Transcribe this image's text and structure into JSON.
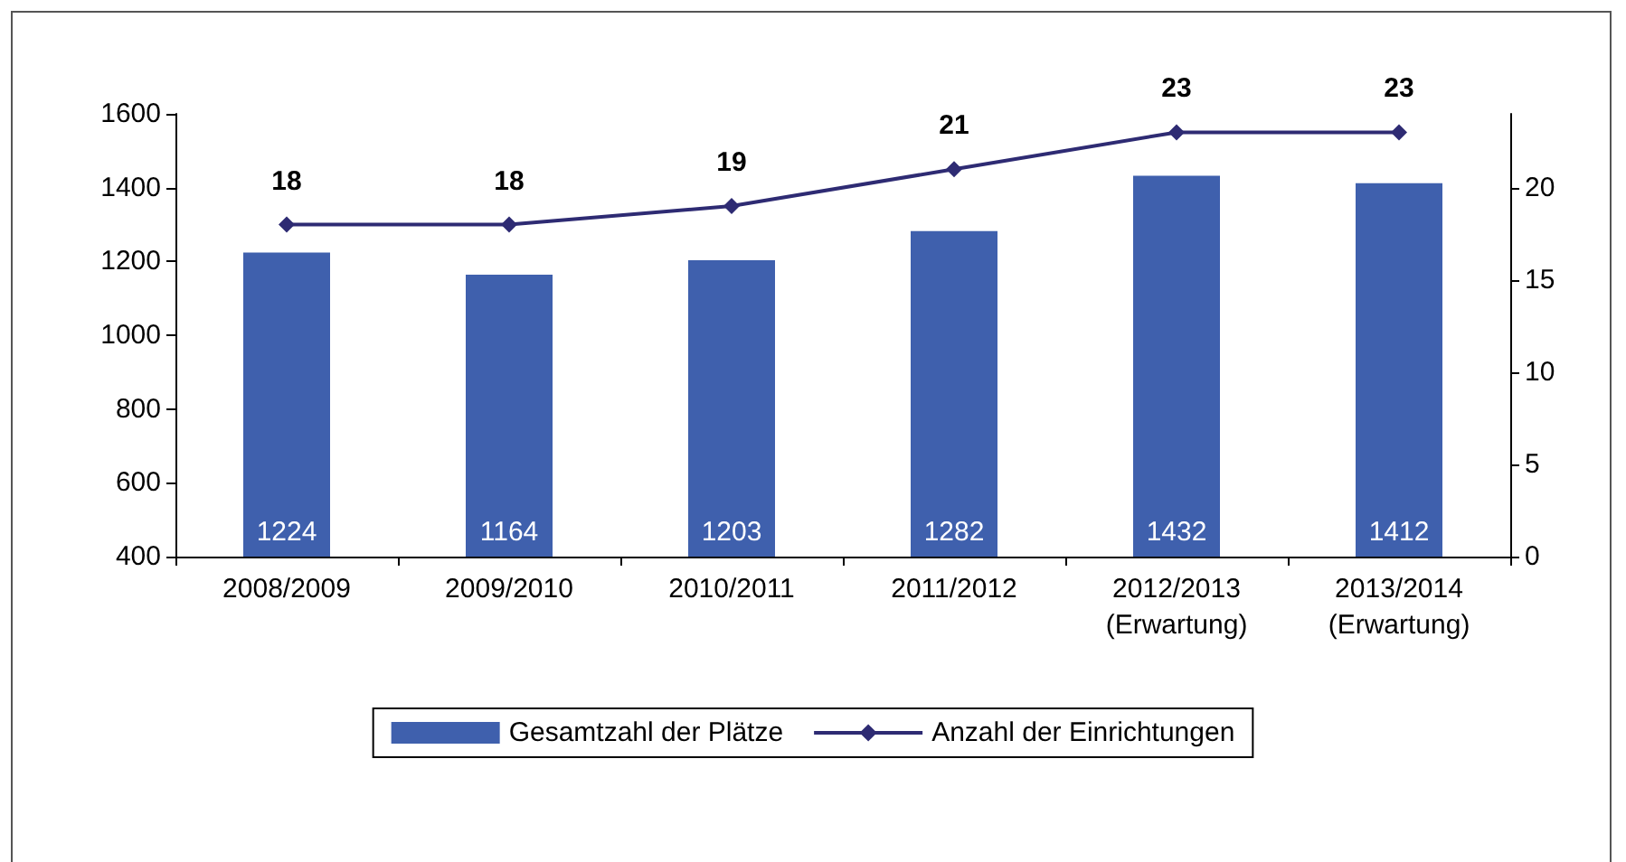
{
  "chart_data": {
    "type": "bar",
    "categories": [
      "2008/2009",
      "2009/2010",
      "2010/2011",
      "2011/2012",
      "2012/2013\n(Erwartung)",
      "2013/2014\n(Erwartung)"
    ],
    "series": [
      {
        "name": "Gesamtzahl der Plätze",
        "color": "#3f60ad",
        "values": [
          1224,
          1164,
          1203,
          1282,
          1432,
          1412
        ]
      },
      {
        "name": "Anzahl der Einrichtungen",
        "type": "line",
        "axis": "y2",
        "color": "#2e2b73",
        "values": [
          18,
          18,
          19,
          21,
          23,
          23
        ]
      }
    ],
    "ylim": [
      400,
      1600
    ],
    "yticks": [
      400,
      600,
      800,
      1000,
      1200,
      1400,
      1600
    ],
    "y2lim": [
      0,
      24
    ],
    "y2ticks": [
      0,
      5,
      10,
      15,
      20
    ],
    "data_labels": true,
    "grid": false,
    "legend": "bottom",
    "marker": "diamond",
    "line_style": "solid"
  }
}
